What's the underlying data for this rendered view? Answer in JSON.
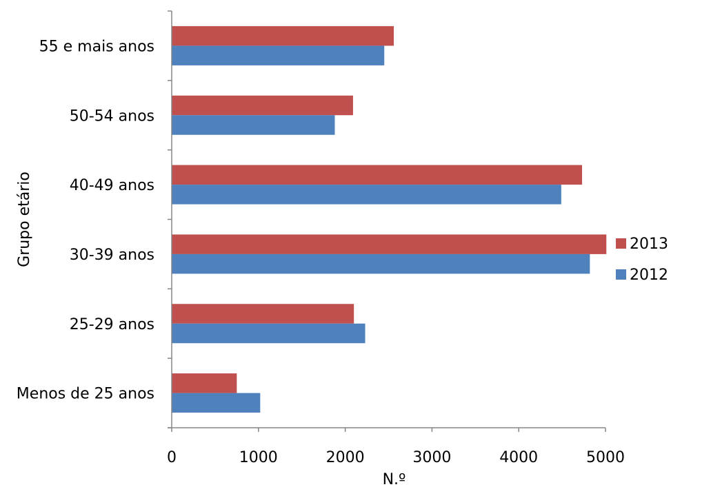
{
  "chart_data": {
    "type": "bar",
    "orientation": "horizontal",
    "categories": [
      "Menos de 25 anos",
      "25-29 anos",
      "30-39 anos",
      "40-49 anos",
      "50-54 anos",
      "55 e mais anos"
    ],
    "series": [
      {
        "name": "2012",
        "color": "#4F81BD",
        "values": [
          1020,
          2230,
          4820,
          4490,
          1880,
          2450
        ]
      },
      {
        "name": "2013",
        "color": "#C0504D",
        "values": [
          750,
          2100,
          5010,
          4730,
          2090,
          2560
        ]
      }
    ],
    "xlabel": "N.º",
    "ylabel": "Grupo etário",
    "xlim": [
      0,
      5000
    ],
    "xticks": [
      "0",
      "1000",
      "2000",
      "3000",
      "4000",
      "5000"
    ],
    "grid": false,
    "legend_position": "right"
  }
}
